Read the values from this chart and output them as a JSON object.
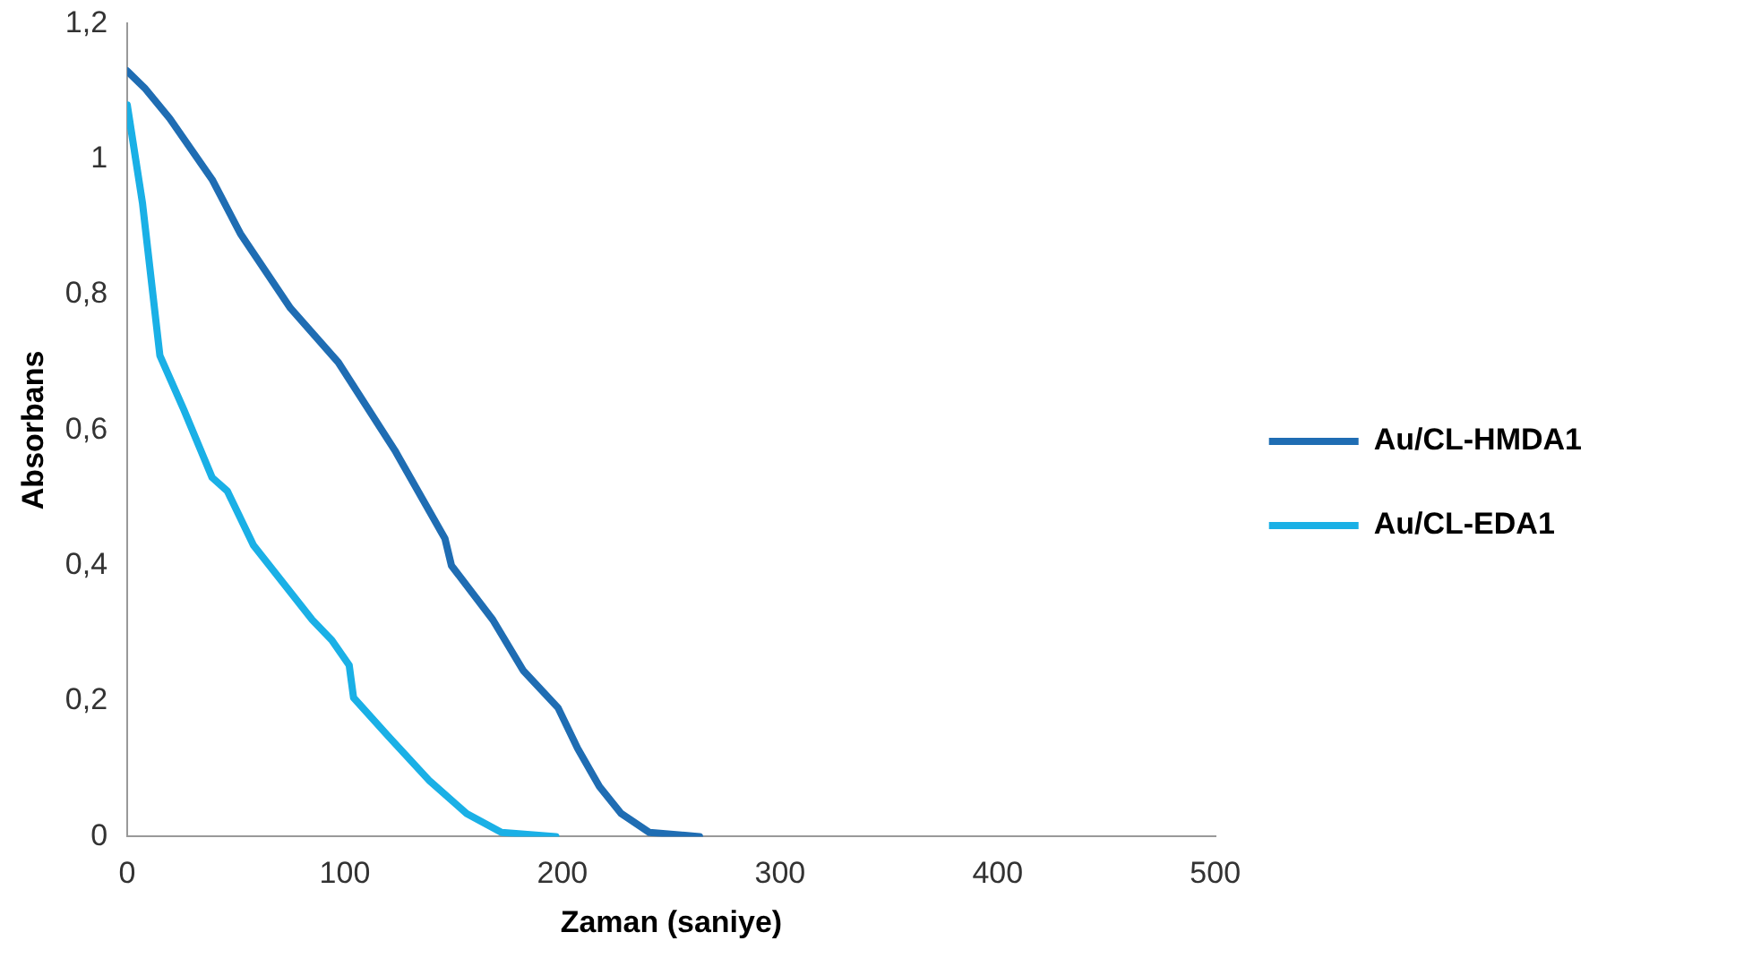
{
  "chart_data": {
    "type": "line",
    "xlabel": "Zaman (saniye)",
    "ylabel": "Absorbans",
    "xlim": [
      0,
      500
    ],
    "xticks": [
      0,
      100,
      200,
      300,
      400,
      500
    ],
    "ylim": [
      0,
      1.2
    ],
    "yticks": [
      0,
      {
        "value": 0.2,
        "label": "0,2"
      },
      {
        "value": 0.4,
        "label": "0,4"
      },
      {
        "value": 0.6,
        "label": "0,6"
      },
      {
        "value": 0.8,
        "label": "0,8"
      },
      1,
      {
        "value": 1.2,
        "label": "1,2"
      }
    ],
    "grid": false,
    "legend": "right",
    "marker": "none",
    "line_style": "solid",
    "series": [
      {
        "name": "Au/CL-HMDA1",
        "color": "#1f6db3",
        "x": [
          0,
          8,
          19.5,
          39,
          52,
          75,
          97,
          123,
          146,
          149,
          168,
          182,
          198,
          207,
          217,
          227,
          240,
          263
        ],
        "values": [
          1.13,
          1.105,
          1.06,
          0.97,
          0.89,
          0.78,
          0.7,
          0.57,
          0.44,
          0.4,
          0.32,
          0.245,
          0.19,
          0.13,
          0.074,
          0.034,
          0.006,
          0
        ]
      },
      {
        "name": "Au/CL-EDA1",
        "color": "#1ab0e6",
        "x": [
          0,
          7,
          15,
          26,
          39,
          46,
          58,
          85,
          94,
          102,
          104,
          120,
          139,
          156,
          172,
          197
        ],
        "values": [
          1.08,
          0.935,
          0.71,
          0.63,
          0.53,
          0.51,
          0.43,
          0.32,
          0.29,
          0.253,
          0.205,
          0.148,
          0.082,
          0.034,
          0.006,
          0
        ]
      }
    ]
  }
}
